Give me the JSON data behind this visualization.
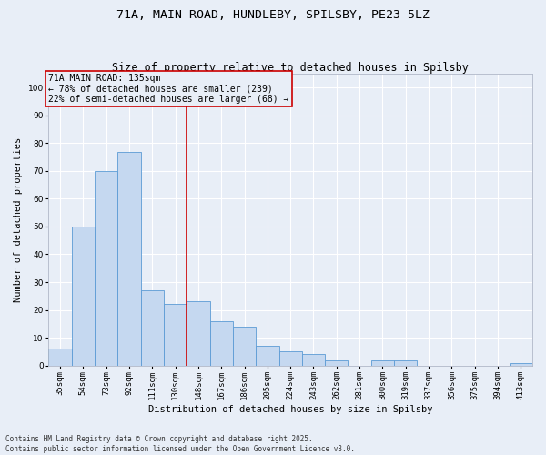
{
  "title1": "71A, MAIN ROAD, HUNDLEBY, SPILSBY, PE23 5LZ",
  "title2": "Size of property relative to detached houses in Spilsby",
  "xlabel": "Distribution of detached houses by size in Spilsby",
  "ylabel": "Number of detached properties",
  "categories": [
    "35sqm",
    "54sqm",
    "73sqm",
    "92sqm",
    "111sqm",
    "130sqm",
    "148sqm",
    "167sqm",
    "186sqm",
    "205sqm",
    "224sqm",
    "243sqm",
    "262sqm",
    "281sqm",
    "300sqm",
    "319sqm",
    "337sqm",
    "356sqm",
    "375sqm",
    "394sqm",
    "413sqm"
  ],
  "values": [
    6,
    50,
    70,
    77,
    27,
    22,
    23,
    16,
    14,
    7,
    5,
    4,
    2,
    0,
    2,
    2,
    0,
    0,
    0,
    0,
    1
  ],
  "bar_color": "#c5d8f0",
  "bar_edge_color": "#5b9bd5",
  "vline_x_index": 6,
  "vline_color": "#cc0000",
  "annotation_box_text": "71A MAIN ROAD: 135sqm\n← 78% of detached houses are smaller (239)\n22% of semi-detached houses are larger (68) →",
  "ylim": [
    0,
    105
  ],
  "yticks": [
    0,
    10,
    20,
    30,
    40,
    50,
    60,
    70,
    80,
    90,
    100
  ],
  "background_color": "#e8eef7",
  "grid_color": "#ffffff",
  "footer": "Contains HM Land Registry data © Crown copyright and database right 2025.\nContains public sector information licensed under the Open Government Licence v3.0.",
  "title_fontsize": 9.5,
  "subtitle_fontsize": 8.5,
  "axis_label_fontsize": 7.5,
  "tick_fontsize": 6.5,
  "annotation_fontsize": 7,
  "footer_fontsize": 5.5
}
